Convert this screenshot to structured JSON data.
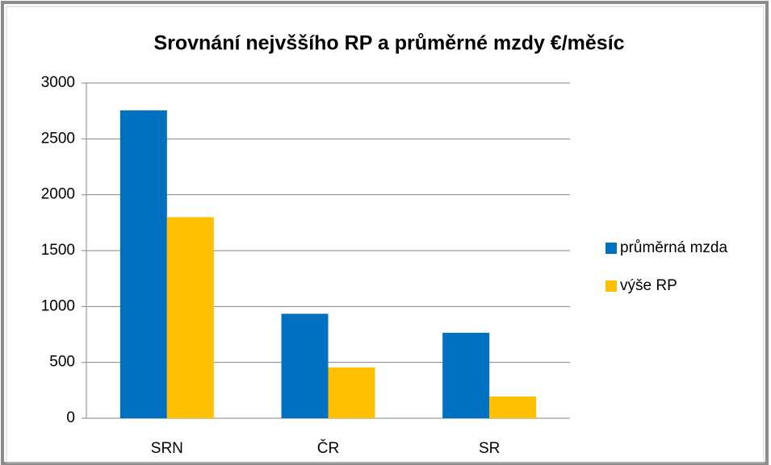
{
  "chart_data": {
    "type": "bar",
    "title": "Srovnání nejvššího RP a průměrné mzdy €/měsíc",
    "categories": [
      "SRN",
      "ČR",
      "SR"
    ],
    "series": [
      {
        "name": "průměrná mzda",
        "color": "#0070c0",
        "values": [
          2755,
          935,
          765
        ]
      },
      {
        "name": "výše RP",
        "color": "#ffc000",
        "values": [
          1800,
          455,
          195
        ]
      }
    ],
    "ylim": [
      0,
      3000
    ],
    "yticks": [
      0,
      500,
      1000,
      1500,
      2000,
      2500,
      3000
    ],
    "grid": true,
    "legend": "right"
  }
}
